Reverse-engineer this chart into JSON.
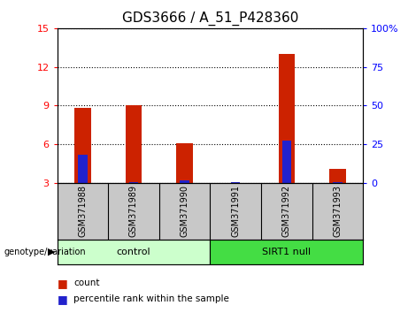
{
  "title": "GDS3666 / A_51_P428360",
  "samples": [
    "GSM371988",
    "GSM371989",
    "GSM371990",
    "GSM371991",
    "GSM371992",
    "GSM371993"
  ],
  "count_values": [
    8.8,
    9.0,
    6.1,
    3.0,
    13.0,
    4.1
  ],
  "percentile_values": [
    5.2,
    3.1,
    3.2,
    3.1,
    6.3,
    3.1
  ],
  "baseline": 3.0,
  "ylim_left": [
    3,
    15
  ],
  "ylim_right": [
    0,
    100
  ],
  "yticks_left": [
    3,
    6,
    9,
    12,
    15
  ],
  "yticks_right": [
    0,
    25,
    50,
    75,
    100
  ],
  "ytick_labels_right": [
    "0",
    "25",
    "50",
    "75",
    "100%"
  ],
  "bar_color_red": "#cc2200",
  "bar_color_blue": "#2222cc",
  "groups": [
    {
      "label": "control",
      "indices": [
        0,
        1,
        2
      ],
      "color": "#ccffcc"
    },
    {
      "label": "SIRT1 null",
      "indices": [
        3,
        4,
        5
      ],
      "color": "#44dd44"
    }
  ],
  "group_label_prefix": "genotype/variation",
  "label_count": "count",
  "label_percentile": "percentile rank within the sample",
  "tick_area_bg": "#c8c8c8",
  "plot_bg": "#ffffff",
  "title_fontsize": 11,
  "tick_fontsize": 8,
  "red_bar_width": 0.32,
  "blue_bar_width": 0.18
}
